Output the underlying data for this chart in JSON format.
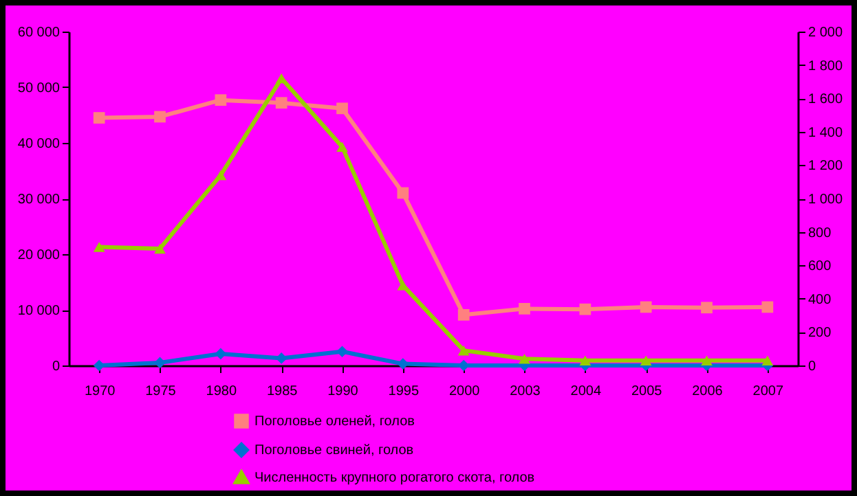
{
  "chart_data": {
    "type": "line",
    "categories": [
      "1970",
      "1975",
      "1980",
      "1985",
      "1990",
      "1995",
      "2000",
      "2003",
      "2004",
      "2005",
      "2006",
      "2007"
    ],
    "series": [
      {
        "name": "Поголовье оленей, голов",
        "color": "#ff8080",
        "marker": "square",
        "values": [
          44500,
          44700,
          47700,
          47200,
          46200,
          31000,
          9100,
          10200,
          10100,
          10500,
          10400,
          10500
        ]
      },
      {
        "name": "Поголовье свиней, голов",
        "color": "#0070d0",
        "marker": "diamond",
        "values": [
          0,
          500,
          2100,
          1300,
          2500,
          300,
          0,
          0,
          0,
          0,
          0,
          0
        ]
      },
      {
        "name": "Численность крупного рогатого скота, голов",
        "color": "#99cc00",
        "marker": "triangle",
        "axis": "y2",
        "values": [
          710,
          700,
          1140,
          1720,
          1310,
          480,
          90,
          40,
          30,
          30,
          30,
          30
        ]
      }
    ],
    "ylim": [
      0,
      60000
    ],
    "yticks": [
      {
        "value": 0,
        "label": "0"
      },
      {
        "value": 10000,
        "label": "10 000"
      },
      {
        "value": 20000,
        "label": "20 000"
      },
      {
        "value": 30000,
        "label": "30 000"
      },
      {
        "value": 40000,
        "label": "40 000"
      },
      {
        "value": 50000,
        "label": "50 000"
      },
      {
        "value": 60000,
        "label": "60 000"
      }
    ],
    "y2lim": [
      0,
      2000
    ],
    "y2ticks": [
      {
        "value": 0,
        "label": "0"
      },
      {
        "value": 200,
        "label": "200"
      },
      {
        "value": 400,
        "label": "400"
      },
      {
        "value": 600,
        "label": "600"
      },
      {
        "value": 800,
        "label": "800"
      },
      {
        "value": 1000,
        "label": "1 000"
      },
      {
        "value": 1200,
        "label": "1 200"
      },
      {
        "value": 1400,
        "label": "1 400"
      },
      {
        "value": 1600,
        "label": "1 600"
      },
      {
        "value": 1800,
        "label": "1 800"
      },
      {
        "value": 2000,
        "label": "2 000"
      }
    ],
    "grid": false,
    "legend": "bottom",
    "line_style": "solid"
  }
}
